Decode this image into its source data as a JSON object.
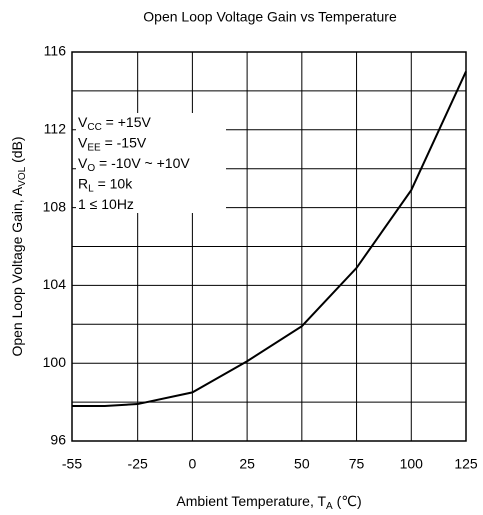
{
  "chart_data": {
    "type": "line",
    "title": "Open Loop Voltage Gain vs Temperature",
    "x_label": [
      "Ambient Temperature, T",
      "A",
      " (℃)"
    ],
    "y_label": [
      "Open Loop Voltage Gain, A",
      "VOL",
      " (dB)"
    ],
    "x": [
      -55,
      -40,
      -25,
      0,
      25,
      50,
      75,
      100,
      125
    ],
    "series": [
      {
        "color": "#000000",
        "values": [
          97.8,
          97.8,
          97.9,
          98.5,
          100.1,
          101.9,
          104.9,
          108.9,
          115
        ]
      }
    ],
    "xlim": [
      -55,
      125
    ],
    "xticks": [
      -55,
      -25,
      0,
      25,
      50,
      75,
      100,
      125
    ],
    "ylim": [
      96,
      116
    ],
    "yticks": [
      96,
      100,
      104,
      108,
      112,
      116
    ],
    "ygrid": [
      96,
      98,
      100,
      102,
      104,
      106,
      108,
      110,
      112,
      114,
      116
    ],
    "grid": true,
    "annotations": [
      [
        "V",
        "CC",
        " = +15V"
      ],
      [
        "V",
        "EE",
        " = -15V"
      ],
      [
        "V",
        "O",
        " = -10V ~ +10V"
      ],
      [
        "R",
        "L",
        " = 10k"
      ],
      [
        "1 ≤ 10Hz"
      ]
    ]
  }
}
